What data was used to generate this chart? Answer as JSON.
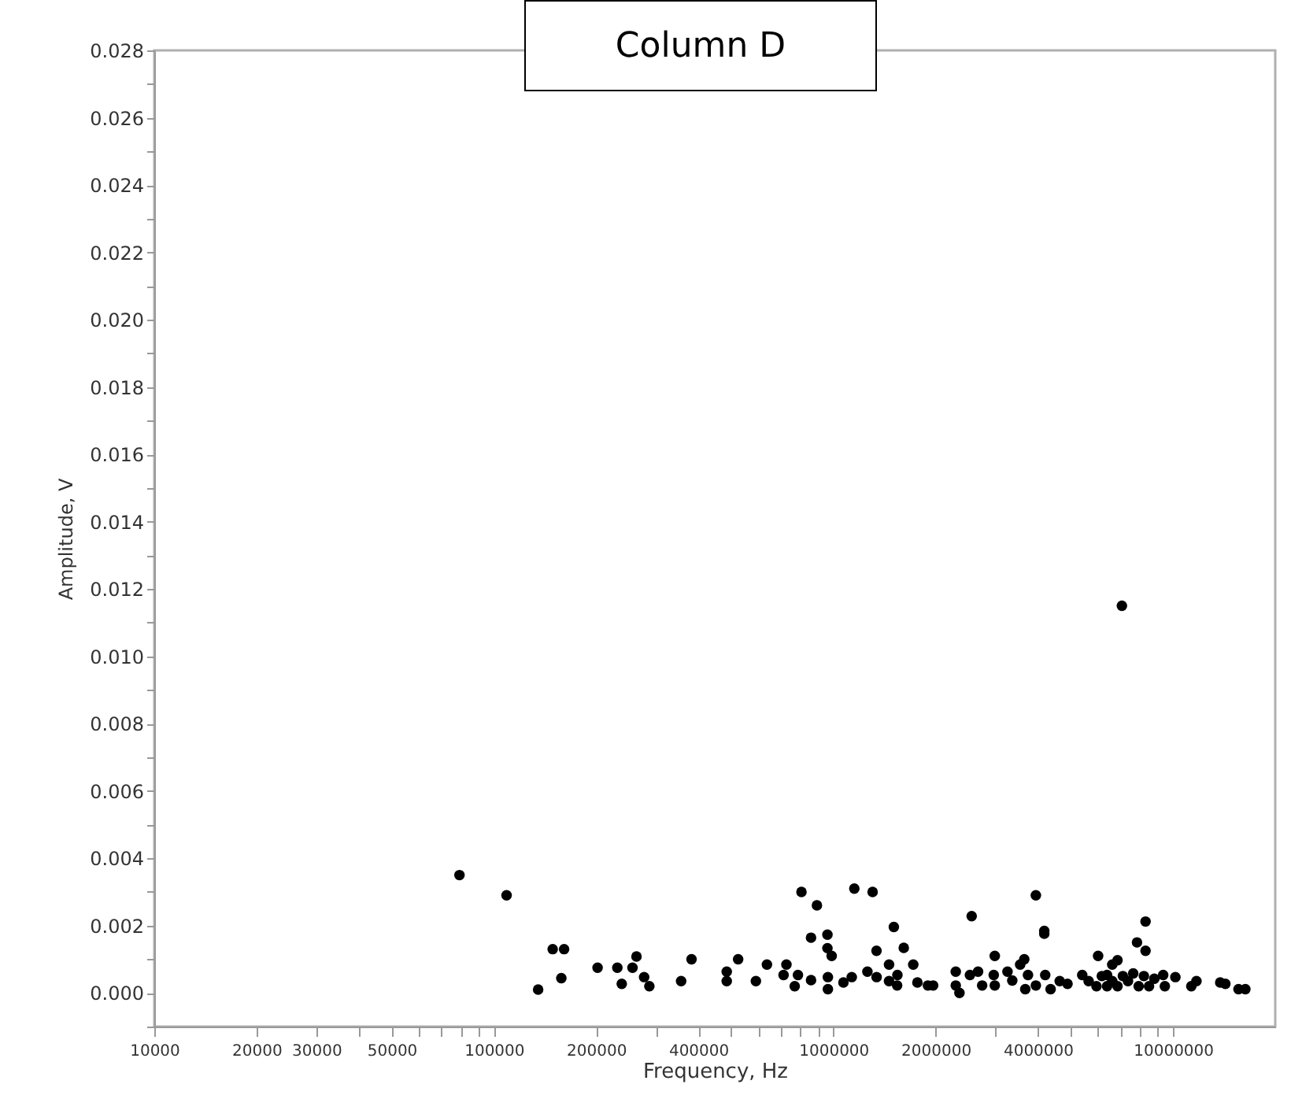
{
  "chart_data": {
    "type": "scatter",
    "title": "Column D",
    "xlabel": "Frequency, Hz",
    "ylabel": "Amplitude, V",
    "log": "x",
    "marker": "circle",
    "grid": false,
    "legend": false,
    "xlim": [
      10000,
      20000000
    ],
    "ylim": [
      -0.001,
      0.028
    ],
    "xticks": [
      10000,
      20000,
      30000,
      {
        "value": 40000,
        "label": null
      },
      50000,
      {
        "value": 60000,
        "label": null
      },
      {
        "value": 70000,
        "label": null
      },
      {
        "value": 80000,
        "label": null
      },
      {
        "value": 90000,
        "label": null
      },
      100000,
      200000,
      {
        "value": 300000,
        "label": null
      },
      400000,
      {
        "value": 500000,
        "label": null
      },
      {
        "value": 600000,
        "label": null
      },
      {
        "value": 700000,
        "label": null
      },
      {
        "value": 800000,
        "label": null
      },
      {
        "value": 900000,
        "label": null
      },
      1000000,
      2000000,
      {
        "value": 3000000,
        "label": null
      },
      4000000,
      {
        "value": 5000000,
        "label": null
      },
      {
        "value": 6000000,
        "label": null
      },
      {
        "value": 7000000,
        "label": null
      },
      {
        "value": 8000000,
        "label": null
      },
      {
        "value": 9000000,
        "label": null
      },
      10000000
    ],
    "yticks": [
      {
        "value": 0,
        "label": "0.000"
      },
      {
        "value": 0.002,
        "label": "0.002"
      },
      {
        "value": 0.004,
        "label": "0.004"
      },
      {
        "value": 0.006,
        "label": "0.006"
      },
      {
        "value": 0.008,
        "label": "0.008"
      },
      {
        "value": 0.01,
        "label": "0.010"
      },
      {
        "value": 0.012,
        "label": "0.012"
      },
      {
        "value": 0.014,
        "label": "0.014"
      },
      {
        "value": 0.016,
        "label": "0.016"
      },
      {
        "value": 0.018,
        "label": "0.018"
      },
      {
        "value": 0.02,
        "label": "0.020"
      },
      {
        "value": 0.022,
        "label": "0.022"
      },
      {
        "value": 0.024,
        "label": "0.024"
      },
      {
        "value": 0.026,
        "label": "0.026"
      },
      {
        "value": 0.028,
        "label": "0.028"
      },
      {
        "value": -0.001,
        "label": null
      },
      {
        "value": 0.001,
        "label": null
      },
      {
        "value": 0.003,
        "label": null
      },
      {
        "value": 0.005,
        "label": null
      },
      {
        "value": 0.007,
        "label": null
      },
      {
        "value": 0.009,
        "label": null
      },
      {
        "value": 0.011,
        "label": null
      },
      {
        "value": 0.013,
        "label": null
      },
      {
        "value": 0.015,
        "label": null
      },
      {
        "value": 0.017,
        "label": null
      },
      {
        "value": 0.019,
        "label": null
      },
      {
        "value": 0.021,
        "label": null
      },
      {
        "value": 0.023,
        "label": null
      },
      {
        "value": 0.025,
        "label": null
      },
      {
        "value": 0.027,
        "label": null
      }
    ],
    "series": [
      {
        "color": "#000000",
        "x": [
          79200,
          109000,
          135000,
          149000,
          161000,
          158000,
          202000,
          231000,
          238000,
          256000,
          263000,
          277000,
          287000,
          356000,
          382000,
          485000,
          485000,
          524000,
          591000,
          637000,
          727000,
          713000,
          769000,
          786000,
          805000,
          859000,
          859000,
          894000,
          960000,
          960000,
          988000,
          963000,
          963000,
          1070000,
          1132000,
          1152000,
          1259000,
          1304000,
          1339000,
          1340000,
          1458000,
          1458000,
          1506000,
          1543000,
          1540000,
          1611000,
          1718000,
          1767000,
          1897000,
          1966000,
          2292000,
          2292000,
          2350000,
          2553000,
          2523000,
          2666000,
          2741000,
          2965000,
          2986000,
          2986000,
          3255000,
          3362000,
          3547000,
          3647000,
          3672000,
          3740000,
          3945000,
          3945000,
          4177000,
          4177000,
          4204000,
          4360000,
          4638000,
          4890000,
          5403000,
          5642000,
          5951000,
          6017000,
          6170000,
          6394000,
          6394000,
          6623000,
          6623000,
          6863000,
          6863000,
          7116000,
          7368000,
          7634000,
          7833000,
          7921000,
          8207000,
          8300000,
          8300000,
          8498000,
          8808000,
          9354000,
          9460000,
          10160000,
          11320000,
          11720000,
          13770000,
          14260000,
          15590000,
          16330000,
          7070000
        ],
        "values": [
          0.0035,
          0.0029,
          0.0001,
          0.0013,
          0.0013,
          0.00044,
          0.00075,
          0.00075,
          0.00027,
          0.00075,
          0.00108,
          0.00047,
          0.0002,
          0.00035,
          0.001,
          0.00063,
          0.00035,
          0.001,
          0.00035,
          0.00084,
          0.00084,
          0.00053,
          0.0002,
          0.00053,
          0.003,
          0.00164,
          0.00038,
          0.0026,
          0.00173,
          0.00133,
          0.0011,
          0.00047,
          0.00011,
          0.00031,
          0.00047,
          0.0031,
          0.00063,
          0.003,
          0.00125,
          0.00047,
          0.00084,
          0.00035,
          0.00196,
          0.00053,
          0.00022,
          0.00134,
          0.00084,
          0.00031,
          0.00022,
          0.00022,
          0.00063,
          0.00022,
          0.0,
          0.00228,
          0.00053,
          0.00063,
          0.00022,
          0.00053,
          0.0011,
          0.00022,
          0.00063,
          0.00037,
          0.00084,
          0.001,
          0.00011,
          0.00053,
          0.00022,
          0.0029,
          0.00184,
          0.00176,
          0.00053,
          0.00011,
          0.00035,
          0.00027,
          0.00053,
          0.00035,
          0.0002,
          0.0011,
          0.0005,
          0.0002,
          0.00053,
          0.00035,
          0.00084,
          0.00097,
          0.0002,
          0.0005,
          0.00035,
          0.00058,
          0.0015,
          0.0002,
          0.0005,
          0.00212,
          0.00125,
          0.0002,
          0.00042,
          0.00053,
          0.0002,
          0.00047,
          0.0002,
          0.00035,
          0.00031,
          0.00027,
          0.00011,
          0.00011,
          0.0115
        ]
      }
    ]
  }
}
